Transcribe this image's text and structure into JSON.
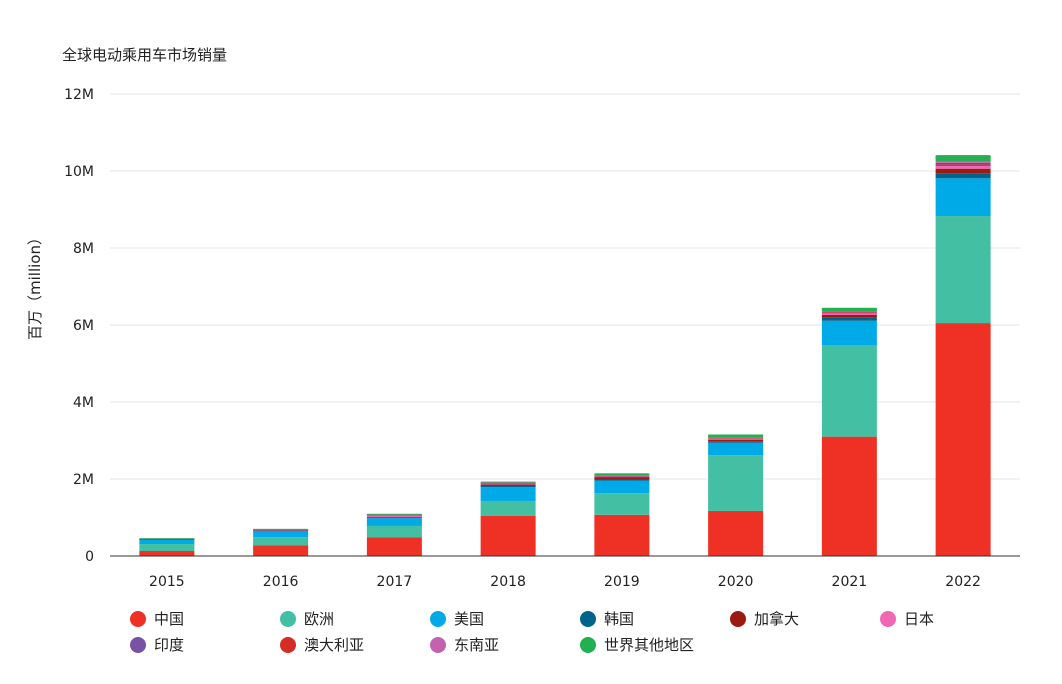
{
  "chart_data": {
    "type": "bar",
    "stacked": true,
    "title": "全球电动乘用车市场销量",
    "ylabel": "百万（million）",
    "xlabel": "",
    "ylim": [
      0,
      12000000
    ],
    "yticks": [
      {
        "value": 0,
        "label": "0"
      },
      {
        "value": 2000000,
        "label": "2M"
      },
      {
        "value": 4000000,
        "label": "4M"
      },
      {
        "value": 6000000,
        "label": "6M"
      },
      {
        "value": 8000000,
        "label": "8M"
      },
      {
        "value": 10000000,
        "label": "10M"
      },
      {
        "value": 12000000,
        "label": "12M"
      }
    ],
    "grid": true,
    "legend_position": "bottom",
    "categories": [
      "2015",
      "2016",
      "2017",
      "2018",
      "2019",
      "2020",
      "2021",
      "2022"
    ],
    "series": [
      {
        "name": "中国",
        "color": "#ee3124",
        "values": [
          130000,
          280000,
          480000,
          1040000,
          1070000,
          1170000,
          3100000,
          6050000
        ]
      },
      {
        "name": "欧洲",
        "color": "#43bfa3",
        "values": [
          180000,
          210000,
          300000,
          390000,
          560000,
          1450000,
          2380000,
          2780000
        ]
      },
      {
        "name": "美国",
        "color": "#00aae7",
        "values": [
          110000,
          160000,
          200000,
          360000,
          330000,
          320000,
          630000,
          980000
        ]
      },
      {
        "name": "韩国",
        "color": "#00638b",
        "values": [
          10000,
          10000,
          20000,
          40000,
          40000,
          40000,
          80000,
          130000
        ]
      },
      {
        "name": "加拿大",
        "color": "#9b1a12",
        "values": [
          5000,
          10000,
          10000,
          30000,
          50000,
          40000,
          70000,
          120000
        ]
      },
      {
        "name": "日本",
        "color": "#f067b4",
        "values": [
          10000,
          10000,
          50000,
          30000,
          20000,
          20000,
          30000,
          70000
        ]
      },
      {
        "name": "印度",
        "color": "#7952a4",
        "values": [
          0,
          5000,
          5000,
          5000,
          5000,
          5000,
          15000,
          40000
        ]
      },
      {
        "name": "澳大利亚",
        "color": "#d42d25",
        "values": [
          2000,
          3000,
          5000,
          5000,
          10000,
          10000,
          20000,
          40000
        ]
      },
      {
        "name": "东南亚",
        "color": "#c462b0",
        "values": [
          3000,
          5000,
          5000,
          10000,
          10000,
          20000,
          30000,
          50000
        ]
      },
      {
        "name": "世界其他地区",
        "color": "#22b050",
        "values": [
          10000,
          10000,
          20000,
          20000,
          50000,
          80000,
          90000,
          150000
        ]
      }
    ]
  }
}
